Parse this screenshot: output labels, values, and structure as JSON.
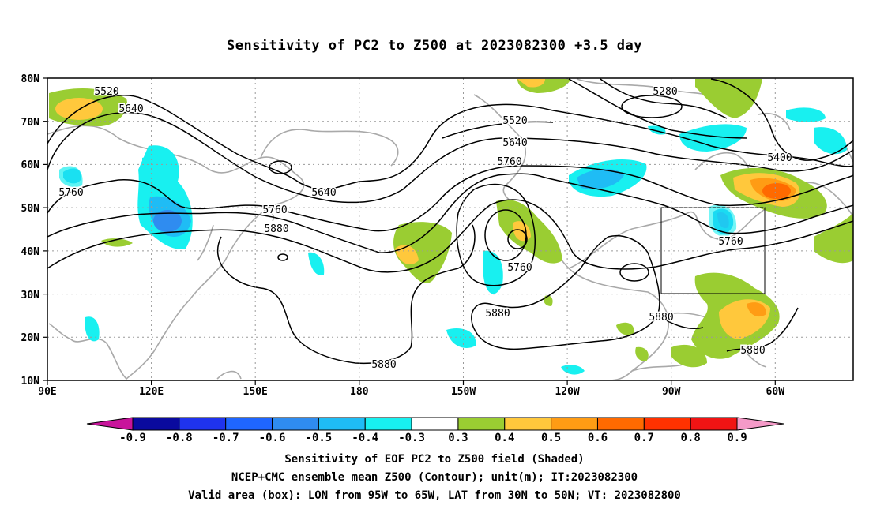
{
  "title": "Sensitivity of PC2 to Z500 at 2023082300 +3.5 day",
  "axes": {
    "lat_labels": [
      "80N",
      "70N",
      "60N",
      "50N",
      "40N",
      "30N",
      "20N",
      "10N"
    ],
    "lon_labels": [
      "90E",
      "120E",
      "150E",
      "180",
      "150W",
      "120W",
      "90W",
      "60W"
    ]
  },
  "contour_labels": [
    "5520",
    "5640",
    "5760",
    "5640",
    "5760",
    "5880",
    "5520",
    "5640",
    "5760",
    "5280",
    "5400",
    "5760",
    "5760",
    "5880",
    "5880",
    "5880",
    "5880"
  ],
  "colorbar": {
    "ticks": [
      "-0.9",
      "-0.8",
      "-0.7",
      "-0.6",
      "-0.5",
      "-0.4",
      "-0.3",
      "0.3",
      "0.4",
      "0.5",
      "0.6",
      "0.7",
      "0.8",
      "0.9"
    ],
    "colors": [
      "#0a0a9e",
      "#1f33ee",
      "#1f66ff",
      "#2f8cf0",
      "#1fbcf5",
      "#18f0f0",
      "#ffffff",
      "#9acd32",
      "#ffc83c",
      "#ff9c14",
      "#ff6a00",
      "#ff3200",
      "#f01414"
    ],
    "low_end_color": "#c8149b",
    "high_end_color": "#f59ac8"
  },
  "captions": [
    "Sensitivity of EOF PC2 to Z500 field (Shaded)",
    "NCEP+CMC ensemble mean Z500 (Contour); unit(m); IT:2023082300",
    "Valid area (box): LON from 95W to 65W, LAT from 30N to 50N; VT: 2023082800"
  ]
}
